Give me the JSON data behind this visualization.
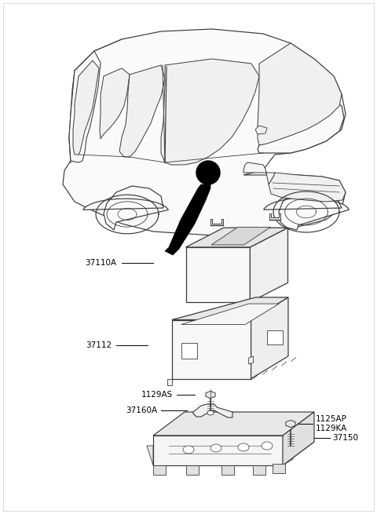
{
  "bg_color": "#ffffff",
  "line_color": "#3a3a3a",
  "label_color": "#000000",
  "font_size": 7.5,
  "parts": {
    "battery_label": "37110A",
    "cover_label": "37112",
    "bolt1_label": "1129AS",
    "clamp_label": "37160A",
    "bolt2_label": "1125AP",
    "bolt3_label": "1129KA",
    "tray_label": "37150"
  }
}
